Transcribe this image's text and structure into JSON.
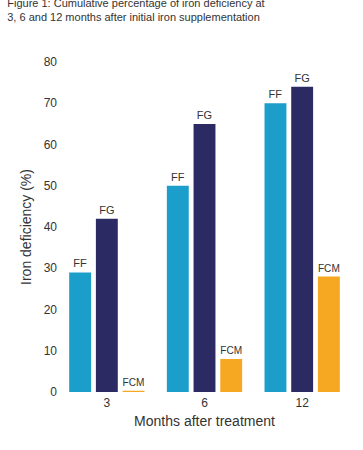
{
  "chart_data": {
    "type": "bar",
    "title": "Figure 1: Cumulative percentage of iron deficiency at\n3, 6 and 12 months after initial iron supplementation",
    "x_label": "Months after treatment",
    "y_label": "Iron deficiency (%)",
    "categories": [
      "3",
      "6",
      "12"
    ],
    "series": [
      {
        "name": "FF",
        "color": "#1b9ec9",
        "values": [
          29,
          50,
          70
        ]
      },
      {
        "name": "FG",
        "color": "#2b2a62",
        "values": [
          42,
          65,
          74
        ]
      },
      {
        "name": "FCM",
        "color": "#f7a822",
        "values": [
          0.3,
          8,
          28
        ]
      }
    ],
    "ylim": [
      0,
      80
    ],
    "yticks": [
      0,
      10,
      20,
      30,
      40,
      50,
      60,
      70,
      80
    ],
    "grid": false
  }
}
